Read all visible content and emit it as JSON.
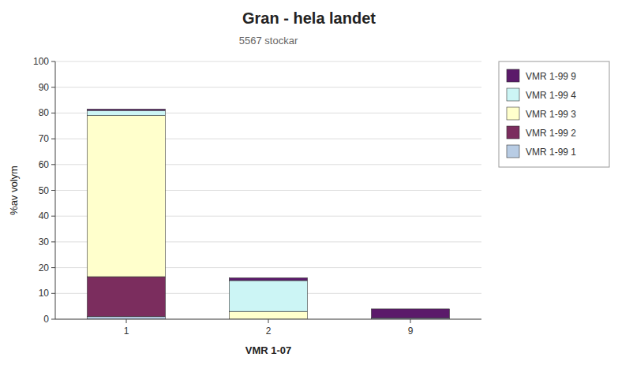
{
  "chart_data": {
    "type": "bar",
    "stacked": true,
    "title": "Gran - hela landet",
    "subtitle": "5567 stockar",
    "xlabel": "VMR 1-07",
    "ylabel": "%av volym",
    "categories": [
      "1",
      "2",
      "9"
    ],
    "series": [
      {
        "name": "VMR 1-99 1",
        "color": "#b8cce4",
        "values": [
          1.0,
          0.0,
          0.5
        ]
      },
      {
        "name": "VMR 1-99 2",
        "color": "#7b2d5e",
        "values": [
          15.5,
          0.0,
          0.0
        ]
      },
      {
        "name": "VMR 1-99 3",
        "color": "#ffffcc",
        "values": [
          62.5,
          3.0,
          0.0
        ]
      },
      {
        "name": "VMR 1-99 4",
        "color": "#ccf5f5",
        "values": [
          2.0,
          12.0,
          0.0
        ]
      },
      {
        "name": "VMR 1-99 9",
        "color": "#5b1a6a",
        "values": [
          0.5,
          1.0,
          3.5
        ]
      }
    ],
    "ylim": [
      0,
      100
    ],
    "yticks": [
      0,
      10,
      20,
      30,
      40,
      50,
      60,
      70,
      80,
      90,
      100
    ],
    "grid": true,
    "legend": "right"
  }
}
